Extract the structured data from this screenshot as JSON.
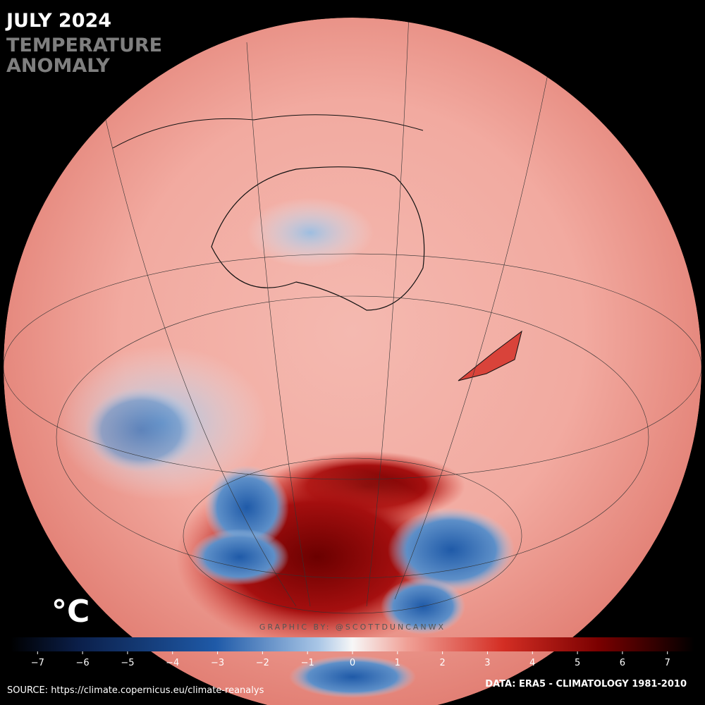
{
  "header": {
    "title": "JULY 2024",
    "subtitle": [
      "TEMPERATURE",
      "ANOMALY"
    ]
  },
  "colorbar": {
    "unit": "°C",
    "range": [
      -7.6,
      7.6
    ],
    "ticks": [
      {
        "value": -7,
        "label": "−7"
      },
      {
        "value": -6,
        "label": "−6"
      },
      {
        "value": -5,
        "label": "−5"
      },
      {
        "value": -4,
        "label": "−4"
      },
      {
        "value": -3,
        "label": "−3"
      },
      {
        "value": -2,
        "label": "−2"
      },
      {
        "value": -1,
        "label": "−1"
      },
      0,
      1,
      2,
      3,
      4,
      5,
      6,
      7
    ]
  },
  "credit": "GRAPHIC BY: @SCOTTDUNCANWX",
  "footer": {
    "source": "SOURCE: https://climate.copernicus.eu/climate-reanalys",
    "data": "DATA: ERA5 - CLIMATOLOGY 1981-2010"
  }
}
